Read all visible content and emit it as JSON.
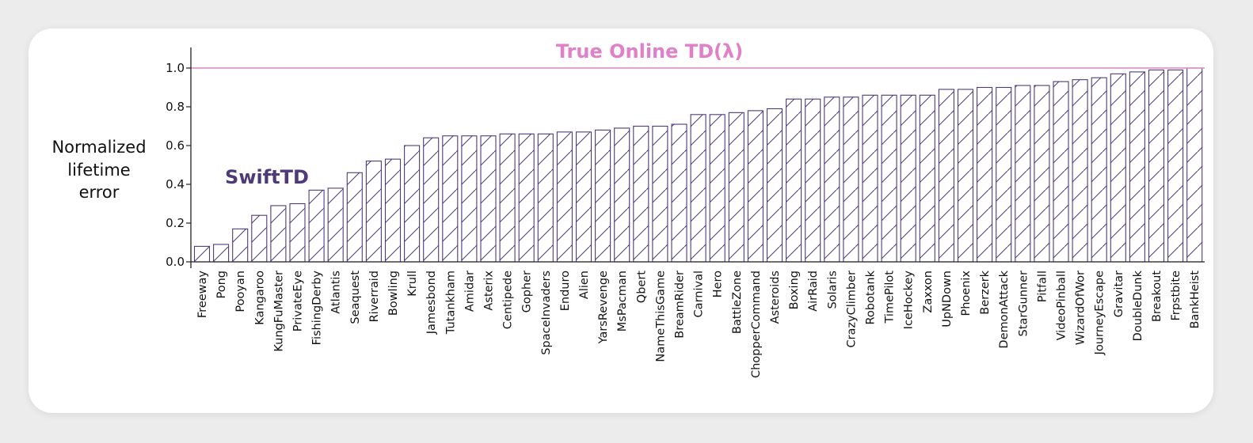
{
  "chart_data": {
    "type": "bar",
    "ylabel": [
      "Normalized",
      "lifetime",
      "error"
    ],
    "ylim": [
      0,
      1.0
    ],
    "yticks": [
      "0.0",
      "0.2",
      "0.4",
      "0.6",
      "0.8",
      "1.0"
    ],
    "grid": false,
    "series": [
      {
        "name": "SwiftTD",
        "color": "#4f3a78",
        "pattern": "diagonal-hatch"
      }
    ],
    "reference_line": {
      "name": "True Online TD(λ)",
      "value": 1.0,
      "color": "#e180c8"
    },
    "categories": [
      "Freeway",
      "Pong",
      "Pooyan",
      "Kangaroo",
      "KungFuMaster",
      "PrivateEye",
      "FishingDerby",
      "Atlantis",
      "Seaquest",
      "Riverraid",
      "Bowling",
      "Krull",
      "Jamesbond",
      "Tutankham",
      "Amidar",
      "Asterix",
      "Centipede",
      "Gopher",
      "SpaceInvaders",
      "Enduro",
      "Alien",
      "YarsRevenge",
      "MsPacman",
      "Qbert",
      "NameThisGame",
      "BreamRider",
      "Carnival",
      "Hero",
      "BattleZone",
      "ChopperCommand",
      "Asteroids",
      "Boxing",
      "AirRaid",
      "Solaris",
      "CrazyClimber",
      "Robotank",
      "TimePilot",
      "IceHockey",
      "Zaxxon",
      "UpNDown",
      "Phoenix",
      "Berzerk",
      "DemonAttack",
      "StarGunner",
      "Pitfall",
      "VideoPinball",
      "WizardOfWor",
      "JourneyEscape",
      "Gravitar",
      "DoubleDunk",
      "Breakout",
      "Frpstbite",
      "BankHeist"
    ],
    "values": [
      0.08,
      0.09,
      0.17,
      0.24,
      0.29,
      0.3,
      0.37,
      0.38,
      0.46,
      0.52,
      0.53,
      0.6,
      0.64,
      0.65,
      0.65,
      0.65,
      0.66,
      0.66,
      0.66,
      0.67,
      0.67,
      0.68,
      0.69,
      0.7,
      0.7,
      0.71,
      0.76,
      0.76,
      0.77,
      0.78,
      0.79,
      0.84,
      0.84,
      0.85,
      0.85,
      0.86,
      0.86,
      0.86,
      0.86,
      0.89,
      0.89,
      0.9,
      0.9,
      0.91,
      0.91,
      0.93,
      0.94,
      0.95,
      0.97,
      0.98,
      0.99,
      0.99,
      1.0
    ]
  }
}
